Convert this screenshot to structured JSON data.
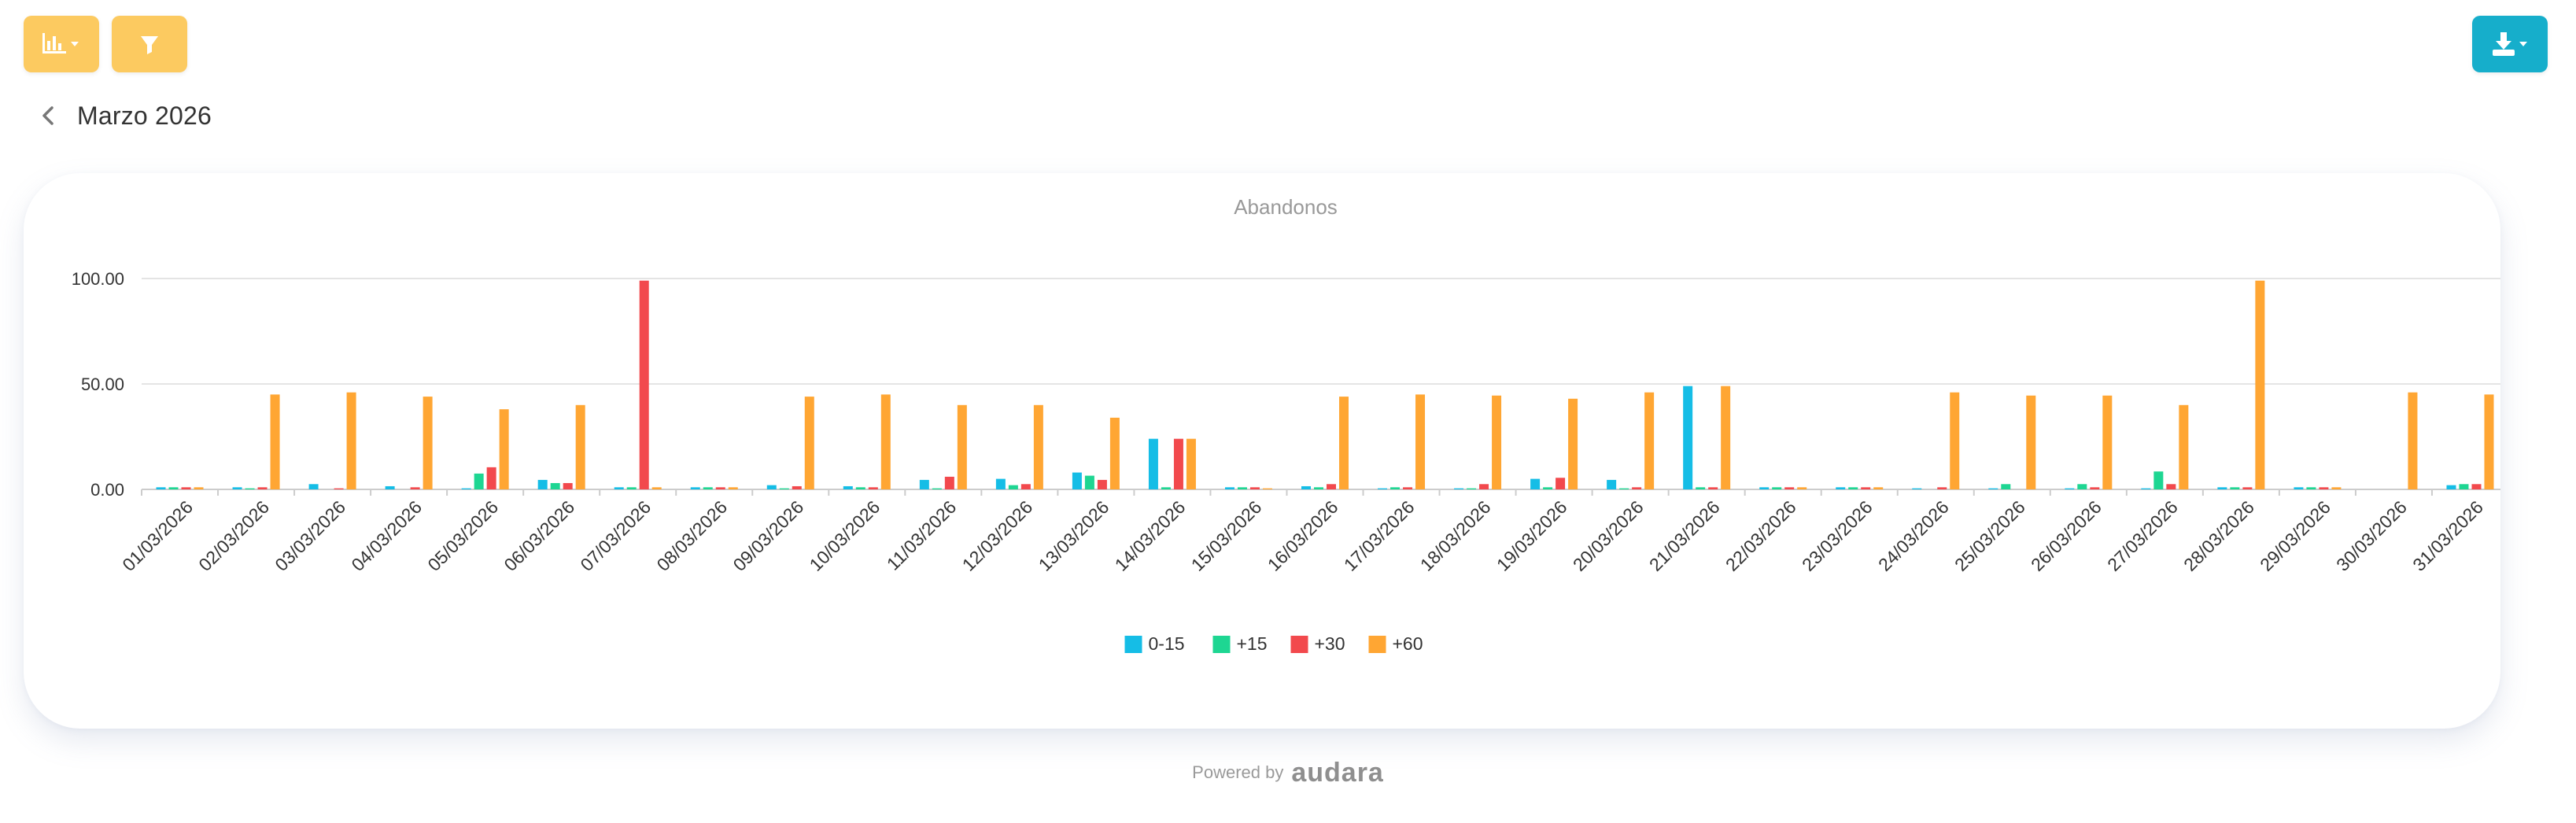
{
  "toolbar": {
    "chart_type_icon": "bar-chart-icon",
    "filter_icon": "filter-icon",
    "download_icon": "download-icon",
    "button_color": "#fcca60",
    "download_color": "#16aecb"
  },
  "header": {
    "back_icon": "chevron-left-icon",
    "title": "Marzo 2026"
  },
  "footer": {
    "powered_by": "Powered by",
    "brand": "audara"
  },
  "chart_data": {
    "type": "bar",
    "title": "Abandonos",
    "xlabel": "",
    "ylabel": "",
    "ylim": [
      0,
      100
    ],
    "yticks": [
      "0.00",
      "50.00",
      "100.00"
    ],
    "grid": true,
    "legend_position": "bottom",
    "categories": [
      "01/03/2026",
      "02/03/2026",
      "03/03/2026",
      "04/03/2026",
      "05/03/2026",
      "06/03/2026",
      "07/03/2026",
      "08/03/2026",
      "09/03/2026",
      "10/03/2026",
      "11/03/2026",
      "12/03/2026",
      "13/03/2026",
      "14/03/2026",
      "15/03/2026",
      "16/03/2026",
      "17/03/2026",
      "18/03/2026",
      "19/03/2026",
      "20/03/2026",
      "21/03/2026",
      "22/03/2026",
      "23/03/2026",
      "24/03/2026",
      "25/03/2026",
      "26/03/2026",
      "27/03/2026",
      "28/03/2026",
      "29/03/2026",
      "30/03/2026",
      "31/03/2026"
    ],
    "series": [
      {
        "name": "0-15",
        "color": "#15bde6",
        "values": [
          1,
          1,
          2.5,
          1.5,
          0.5,
          4.5,
          1,
          1,
          2,
          1.5,
          4.5,
          5,
          8,
          24,
          1,
          1.5,
          0.5,
          0.5,
          5,
          4.5,
          49,
          1,
          1,
          0.5,
          0.5,
          0.5,
          0.5,
          1,
          1,
          0,
          2
        ]
      },
      {
        "name": "+15",
        "color": "#1ed692",
        "values": [
          1,
          0.5,
          0,
          0,
          7.5,
          3,
          1,
          1,
          0.5,
          1,
          0.5,
          2,
          6.5,
          1,
          1,
          1,
          1,
          0.5,
          1,
          0.5,
          1,
          1,
          1,
          0,
          2.5,
          2.5,
          8.5,
          1,
          1,
          0,
          2.5
        ]
      },
      {
        "name": "+30",
        "color": "#f2494d",
        "values": [
          1,
          1,
          0.5,
          1,
          10.5,
          3,
          99,
          1,
          1.5,
          1,
          6,
          2.5,
          4.5,
          24,
          1,
          2.5,
          1,
          2.5,
          5.5,
          1,
          1,
          1,
          1,
          1,
          0,
          1,
          2.5,
          1,
          1,
          0,
          2.5
        ]
      },
      {
        "name": "+60",
        "color": "#ffa633",
        "values": [
          1,
          45,
          46,
          44,
          38,
          40,
          1,
          1,
          44,
          45,
          40,
          40,
          34,
          24,
          0.5,
          44,
          45,
          44.5,
          43,
          46,
          49,
          1,
          1,
          46,
          44.5,
          44.5,
          40,
          99,
          1,
          46,
          45
        ]
      }
    ]
  }
}
